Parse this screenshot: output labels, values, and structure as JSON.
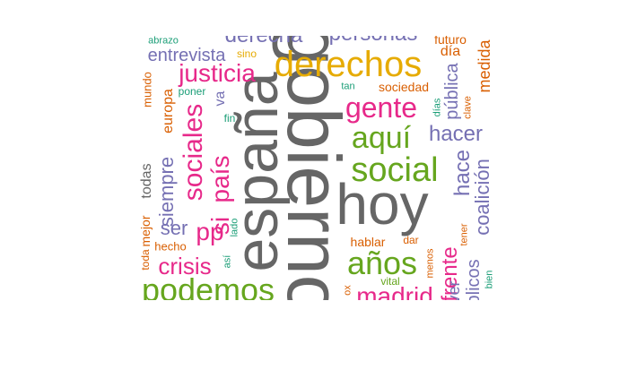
{
  "colors": {
    "gray": "#666666",
    "yellow": "#e6ab02",
    "green": "#66a61e",
    "magenta": "#e7298a",
    "purple": "#7570b3",
    "orange": "#d95f02",
    "teal": "#1b9e77"
  },
  "words": [
    {
      "key": "gobierno",
      "text": "gobierno"
    },
    {
      "key": "espana",
      "text": "españa"
    },
    {
      "key": "hoy",
      "text": "hoy"
    },
    {
      "key": "derechos",
      "text": "derechos"
    },
    {
      "key": "social",
      "text": "social"
    },
    {
      "key": "anos",
      "text": "años"
    },
    {
      "key": "podemos",
      "text": "podemos"
    },
    {
      "key": "gente",
      "text": "gente"
    },
    {
      "key": "aqui",
      "text": "aquí"
    },
    {
      "key": "sociales",
      "text": "sociales"
    },
    {
      "key": "pais",
      "text": "país"
    },
    {
      "key": "si",
      "text": "si"
    },
    {
      "key": "justicia",
      "text": "justicia"
    },
    {
      "key": "crisis",
      "text": "crisis"
    },
    {
      "key": "madrid",
      "text": "madrid"
    },
    {
      "key": "pp",
      "text": "pp"
    },
    {
      "key": "frente",
      "text": "frente"
    },
    {
      "key": "hacer",
      "text": "hacer"
    },
    {
      "key": "hace",
      "text": "hace"
    },
    {
      "key": "coalicion",
      "text": "coalición"
    },
    {
      "key": "derecha",
      "text": "derecha"
    },
    {
      "key": "personas",
      "text": "personas"
    },
    {
      "key": "entrevista",
      "text": "entrevista"
    },
    {
      "key": "siempre",
      "text": "siempre"
    },
    {
      "key": "ser",
      "text": "ser"
    },
    {
      "key": "publica",
      "text": "pública"
    },
    {
      "key": "medida",
      "text": "medida"
    },
    {
      "key": "europa",
      "text": "europa"
    },
    {
      "key": "todas",
      "text": "todas"
    },
    {
      "key": "dia",
      "text": "día"
    },
    {
      "key": "sociedad",
      "text": "sociedad"
    },
    {
      "key": "hablar",
      "text": "hablar"
    },
    {
      "key": "mejor",
      "text": "mejor"
    },
    {
      "key": "mundo",
      "text": "mundo"
    },
    {
      "key": "toda",
      "text": "toda"
    },
    {
      "key": "hecho",
      "text": "hecho"
    },
    {
      "key": "futuro",
      "text": "futuro"
    },
    {
      "key": "publicos",
      "text": "públicos"
    },
    {
      "key": "ver",
      "text": "ver"
    },
    {
      "key": "va",
      "text": "va"
    },
    {
      "key": "sino",
      "text": "sino"
    },
    {
      "key": "dar",
      "text": "dar"
    },
    {
      "key": "menos",
      "text": "menos"
    },
    {
      "key": "abrazo",
      "text": "abrazo"
    },
    {
      "key": "poner",
      "text": "poner"
    },
    {
      "key": "fin",
      "text": "fin"
    },
    {
      "key": "lado",
      "text": "lado"
    },
    {
      "key": "asi",
      "text": "así"
    },
    {
      "key": "tan",
      "text": "tan"
    },
    {
      "key": "dias",
      "text": "días"
    },
    {
      "key": "clave",
      "text": "clave"
    },
    {
      "key": "vital",
      "text": "vital"
    },
    {
      "key": "tener",
      "text": "tener"
    },
    {
      "key": "bien",
      "text": "bien"
    },
    {
      "key": "ox",
      "text": "ox"
    }
  ]
}
